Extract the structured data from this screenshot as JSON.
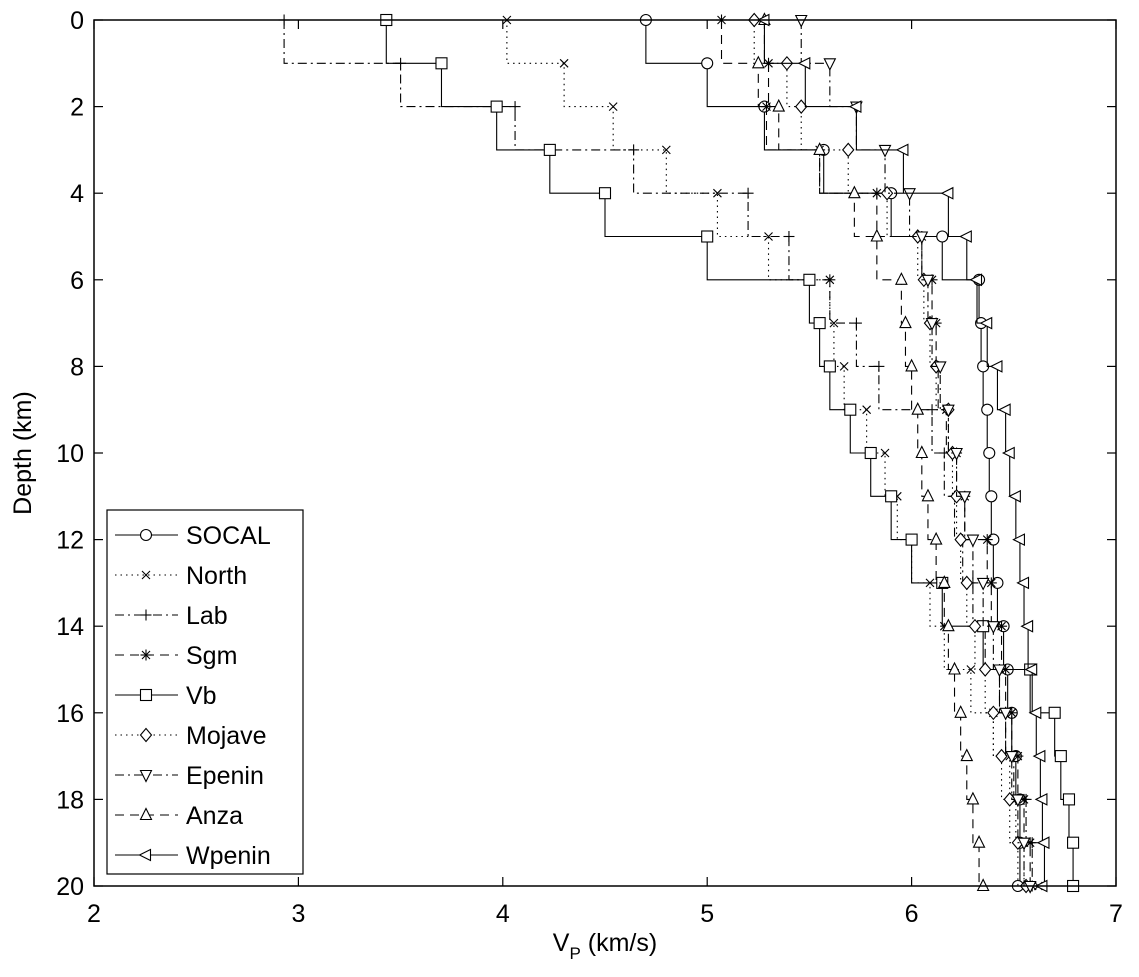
{
  "chart_data": {
    "type": "line",
    "xlabel": "V",
    "xlabel_subscript": "P",
    "xlabel_units": " (km/s)",
    "ylabel": "Depth (km)",
    "xlim": [
      2,
      7
    ],
    "ylim": [
      0,
      20
    ],
    "y_inverted": true,
    "xticks": [
      2,
      3,
      4,
      5,
      6,
      7
    ],
    "yticks": [
      0,
      2,
      4,
      6,
      8,
      10,
      12,
      14,
      16,
      18,
      20
    ],
    "grid": false,
    "legend_position": "bottom-left",
    "depths": [
      0,
      1,
      2,
      3,
      4,
      5,
      6,
      7,
      8,
      9,
      10,
      11,
      12,
      13,
      14,
      15,
      16,
      17,
      18,
      19,
      20
    ],
    "series": [
      {
        "name": "SOCAL",
        "dash": "solid",
        "marker": "circle",
        "color": "#000000",
        "velocities": [
          4.7,
          5.0,
          5.28,
          5.57,
          5.9,
          6.15,
          6.33,
          6.34,
          6.35,
          6.37,
          6.38,
          6.39,
          6.4,
          6.42,
          6.45,
          6.47,
          6.49,
          6.51,
          6.53,
          6.53,
          6.52
        ]
      },
      {
        "name": "North",
        "dash": "dotted",
        "marker": "x",
        "color": "#000000",
        "velocities": [
          4.02,
          4.3,
          4.54,
          4.8,
          5.05,
          5.3,
          5.6,
          5.62,
          5.67,
          5.78,
          5.87,
          5.93,
          6.0,
          6.09,
          6.16,
          6.29,
          6.4,
          6.48,
          6.51,
          6.55,
          6.62
        ]
      },
      {
        "name": "Lab",
        "dash": "dashdot",
        "marker": "plus",
        "color": "#000000",
        "velocities": [
          2.93,
          3.5,
          4.06,
          4.64,
          5.2,
          5.4,
          5.6,
          5.73,
          5.84,
          6.1,
          6.16,
          6.21,
          6.25,
          6.3,
          6.36,
          6.43,
          6.46,
          6.5,
          6.56,
          6.59,
          6.58
        ]
      },
      {
        "name": "Sgm",
        "dash": "dashed",
        "marker": "asterisk",
        "color": "#000000",
        "velocities": [
          5.07,
          5.3,
          5.29,
          5.55,
          5.83,
          6.05,
          6.1,
          6.12,
          6.13,
          6.17,
          6.22,
          6.26,
          6.37,
          6.39,
          6.44,
          6.46,
          6.49,
          6.52,
          6.55,
          6.58,
          6.59
        ]
      },
      {
        "name": "Vb",
        "dash": "solid",
        "marker": "square",
        "color": "#000000",
        "velocities": [
          3.43,
          3.7,
          3.97,
          4.23,
          4.5,
          5.0,
          5.5,
          5.55,
          5.6,
          5.7,
          5.8,
          5.9,
          6.0,
          6.15,
          6.35,
          6.58,
          6.7,
          6.73,
          6.77,
          6.79,
          6.79
        ]
      },
      {
        "name": "Mojave",
        "dash": "dotted",
        "marker": "diamond",
        "color": "#000000",
        "velocities": [
          5.23,
          5.39,
          5.46,
          5.69,
          5.88,
          6.03,
          6.06,
          6.09,
          6.12,
          6.18,
          6.2,
          6.22,
          6.24,
          6.27,
          6.31,
          6.36,
          6.4,
          6.44,
          6.48,
          6.52,
          6.56
        ]
      },
      {
        "name": "Epenin",
        "dash": "dashdot",
        "marker": "triangle-down",
        "color": "#000000",
        "velocities": [
          5.46,
          5.6,
          5.73,
          5.87,
          5.99,
          6.05,
          6.08,
          6.1,
          6.14,
          6.18,
          6.22,
          6.26,
          6.3,
          6.35,
          6.4,
          6.43,
          6.46,
          6.49,
          6.52,
          6.55,
          6.58
        ]
      },
      {
        "name": "Anza",
        "dash": "dashed",
        "marker": "triangle-up",
        "color": "#000000",
        "velocities": [
          5.28,
          5.25,
          5.35,
          5.55,
          5.72,
          5.83,
          5.95,
          5.97,
          6.0,
          6.03,
          6.05,
          6.08,
          6.12,
          6.16,
          6.18,
          6.21,
          6.24,
          6.27,
          6.3,
          6.33,
          6.35
        ]
      },
      {
        "name": "Wpenin",
        "dash": "solid",
        "marker": "triangle-left",
        "color": "#000000",
        "velocities": [
          5.28,
          5.48,
          5.73,
          5.96,
          6.18,
          6.27,
          6.32,
          6.37,
          6.42,
          6.46,
          6.48,
          6.51,
          6.53,
          6.55,
          6.57,
          6.59,
          6.61,
          6.63,
          6.64,
          6.65,
          6.64
        ]
      }
    ]
  }
}
